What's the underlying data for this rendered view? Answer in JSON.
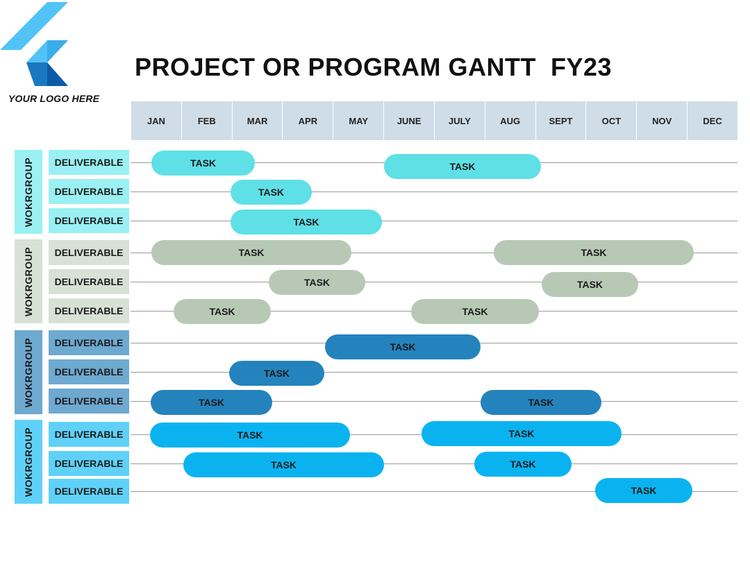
{
  "logo": {
    "text": "YOUR LOGO HERE"
  },
  "title": "PROJECT OR PROGRAM GANTT  FY23",
  "months": [
    "JAN",
    "FEB",
    "MAR",
    "APR",
    "MAY",
    "JUNE",
    "JULY",
    "AUG",
    "SEPT",
    "OCT",
    "NOV",
    "DEC"
  ],
  "colors": {
    "header_bg": "#cfdde9",
    "group1": {
      "bar": "#5ee0e6",
      "label": "#9af0f3"
    },
    "group2": {
      "bar": "#b7c9b5",
      "label": "#d7e1d6"
    },
    "group3": {
      "bar": "#2483bd",
      "label": "#6ea9d0"
    },
    "group4": {
      "bar": "#0ab3f0",
      "label": "#5fd1f8"
    }
  },
  "groups": [
    {
      "label": "WOKRGROUP",
      "color_key": "group1",
      "rows": [
        {
          "label": "DELIVERABLE",
          "tasks": [
            {
              "label": "TASK"
            },
            {
              "label": "TASK"
            }
          ]
        },
        {
          "label": "DELIVERABLE",
          "tasks": [
            {
              "label": "TASK"
            }
          ]
        },
        {
          "label": "DELIVERABLE",
          "tasks": [
            {
              "label": "TASK"
            }
          ]
        }
      ]
    },
    {
      "label": "WOKRGROUP",
      "color_key": "group2",
      "rows": [
        {
          "label": "DELIVERABLE",
          "tasks": [
            {
              "label": "TASK"
            },
            {
              "label": "TASK"
            }
          ]
        },
        {
          "label": "DELIVERABLE",
          "tasks": [
            {
              "label": "TASK"
            },
            {
              "label": "TASK"
            }
          ]
        },
        {
          "label": "DELIVERABLE",
          "tasks": [
            {
              "label": "TASK"
            },
            {
              "label": "TASK"
            }
          ]
        }
      ]
    },
    {
      "label": "WOKRGROUP",
      "color_key": "group3",
      "rows": [
        {
          "label": "DELIVERABLE",
          "tasks": [
            {
              "label": "TASK"
            }
          ]
        },
        {
          "label": "DELIVERABLE",
          "tasks": [
            {
              "label": "TASK"
            }
          ]
        },
        {
          "label": "DELIVERABLE",
          "tasks": [
            {
              "label": "TASK"
            },
            {
              "label": "TASK"
            }
          ]
        }
      ]
    },
    {
      "label": "WOKRGROUP",
      "color_key": "group4",
      "rows": [
        {
          "label": "DELIVERABLE",
          "tasks": [
            {
              "label": "TASK"
            },
            {
              "label": "TASK"
            }
          ]
        },
        {
          "label": "DELIVERABLE",
          "tasks": [
            {
              "label": "TASK"
            },
            {
              "label": "TASK"
            }
          ]
        },
        {
          "label": "DELIVERABLE",
          "tasks": [
            {
              "label": "TASK"
            }
          ]
        }
      ]
    }
  ]
}
